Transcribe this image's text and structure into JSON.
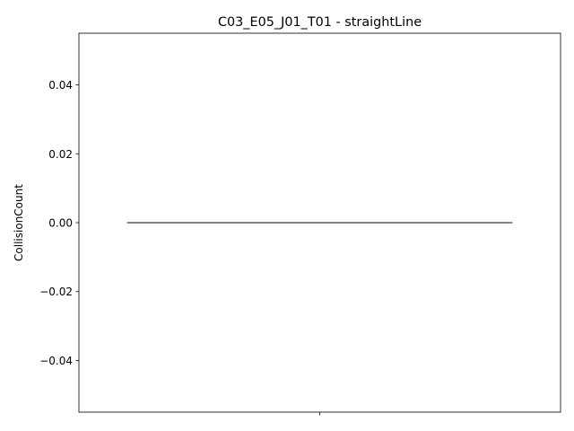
{
  "chart_data": {
    "type": "line",
    "title": "C03_E05_J01_T01 - straightLine",
    "xlabel": "",
    "ylabel": "CollisionCount",
    "ylim": [
      -0.055,
      0.055
    ],
    "yticks": [
      -0.04,
      -0.02,
      0.0,
      0.02,
      0.04
    ],
    "ytick_labels": [
      "−0.04",
      "−0.02",
      "0.00",
      "0.02",
      "0.04"
    ],
    "xticks": [
      0
    ],
    "xtick_labels": [
      ""
    ],
    "grid": false,
    "series": [
      {
        "color": "#3a3a3a",
        "x": [
          -0.4,
          0.4
        ],
        "values": [
          0,
          0
        ]
      }
    ]
  }
}
